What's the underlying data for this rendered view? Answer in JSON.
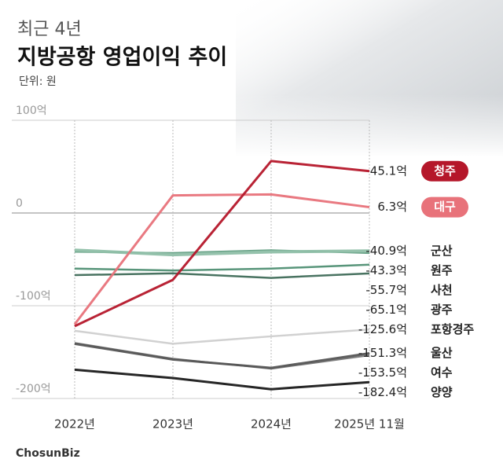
{
  "chart_data": {
    "type": "line",
    "kicker": "최근 4년",
    "title": "지방공항 영업이익 추이",
    "unit": "단위: 원",
    "source": "ChosunBiz",
    "categories": [
      "2022년",
      "2023년",
      "2024년",
      "2025년 11월"
    ],
    "ylim": [
      -200,
      100
    ],
    "yticks": [
      {
        "value": 100,
        "label": "100억"
      },
      0,
      {
        "value": -100,
        "label": "-100억"
      },
      {
        "value": -200,
        "label": "-200억"
      }
    ],
    "grid": true,
    "series": [
      {
        "name": "청주",
        "color": "#b5172a",
        "width": 3,
        "highlight": true,
        "values": [
          -122,
          -72,
          56,
          45.1
        ],
        "value_labels": [
          null,
          null,
          null,
          "45.1억"
        ]
      },
      {
        "name": "대구",
        "color": "#e8727a",
        "width": 3,
        "highlight": true,
        "values": [
          -120,
          19,
          20,
          6.3
        ],
        "value_labels": [
          null,
          null,
          null,
          "6.3억"
        ]
      },
      {
        "name": "군산",
        "color": "#8fbfa8",
        "width": 4,
        "values": [
          -40,
          -45,
          -42,
          -40.9
        ],
        "value_labels": [
          null,
          null,
          null,
          "-40.9억"
        ]
      },
      {
        "name": "원주",
        "color": "#5f9c80",
        "width": 2,
        "values": [
          -42,
          -43,
          -40,
          -43.3
        ],
        "value_labels": [
          null,
          null,
          null,
          "-43.3억"
        ]
      },
      {
        "name": "사천",
        "color": "#4f8f73",
        "width": 2.5,
        "values": [
          -60,
          -62,
          -60,
          -55.7
        ],
        "value_labels": [
          null,
          null,
          null,
          "-55.7억"
        ]
      },
      {
        "name": "광주",
        "color": "#3f6b58",
        "width": 2.5,
        "values": [
          -67,
          -65,
          -70,
          -65.1
        ],
        "value_labels": [
          null,
          null,
          null,
          "-65.1억"
        ]
      },
      {
        "name": "포항경주",
        "color": "#cfcfcf",
        "width": 2.5,
        "values": [
          -127,
          -141,
          -133,
          -125.6
        ],
        "value_labels": [
          null,
          null,
          null,
          "-125.6억"
        ]
      },
      {
        "name": "울산",
        "color": "#555555",
        "width": 3,
        "values": [
          -141,
          -158,
          -167,
          -151.3
        ],
        "value_labels": [
          null,
          null,
          null,
          "-151.3억"
        ]
      },
      {
        "name": "여수",
        "color": "#777777",
        "width": 2,
        "values": [
          -140,
          -157,
          -168,
          -153.5
        ],
        "value_labels": [
          null,
          null,
          null,
          "-153.5억"
        ]
      },
      {
        "name": "양양",
        "color": "#1a1a1a",
        "width": 3,
        "values": [
          -169,
          -178,
          -190,
          -182.4
        ],
        "value_labels": [
          null,
          null,
          null,
          "-182.4억"
        ]
      }
    ]
  }
}
